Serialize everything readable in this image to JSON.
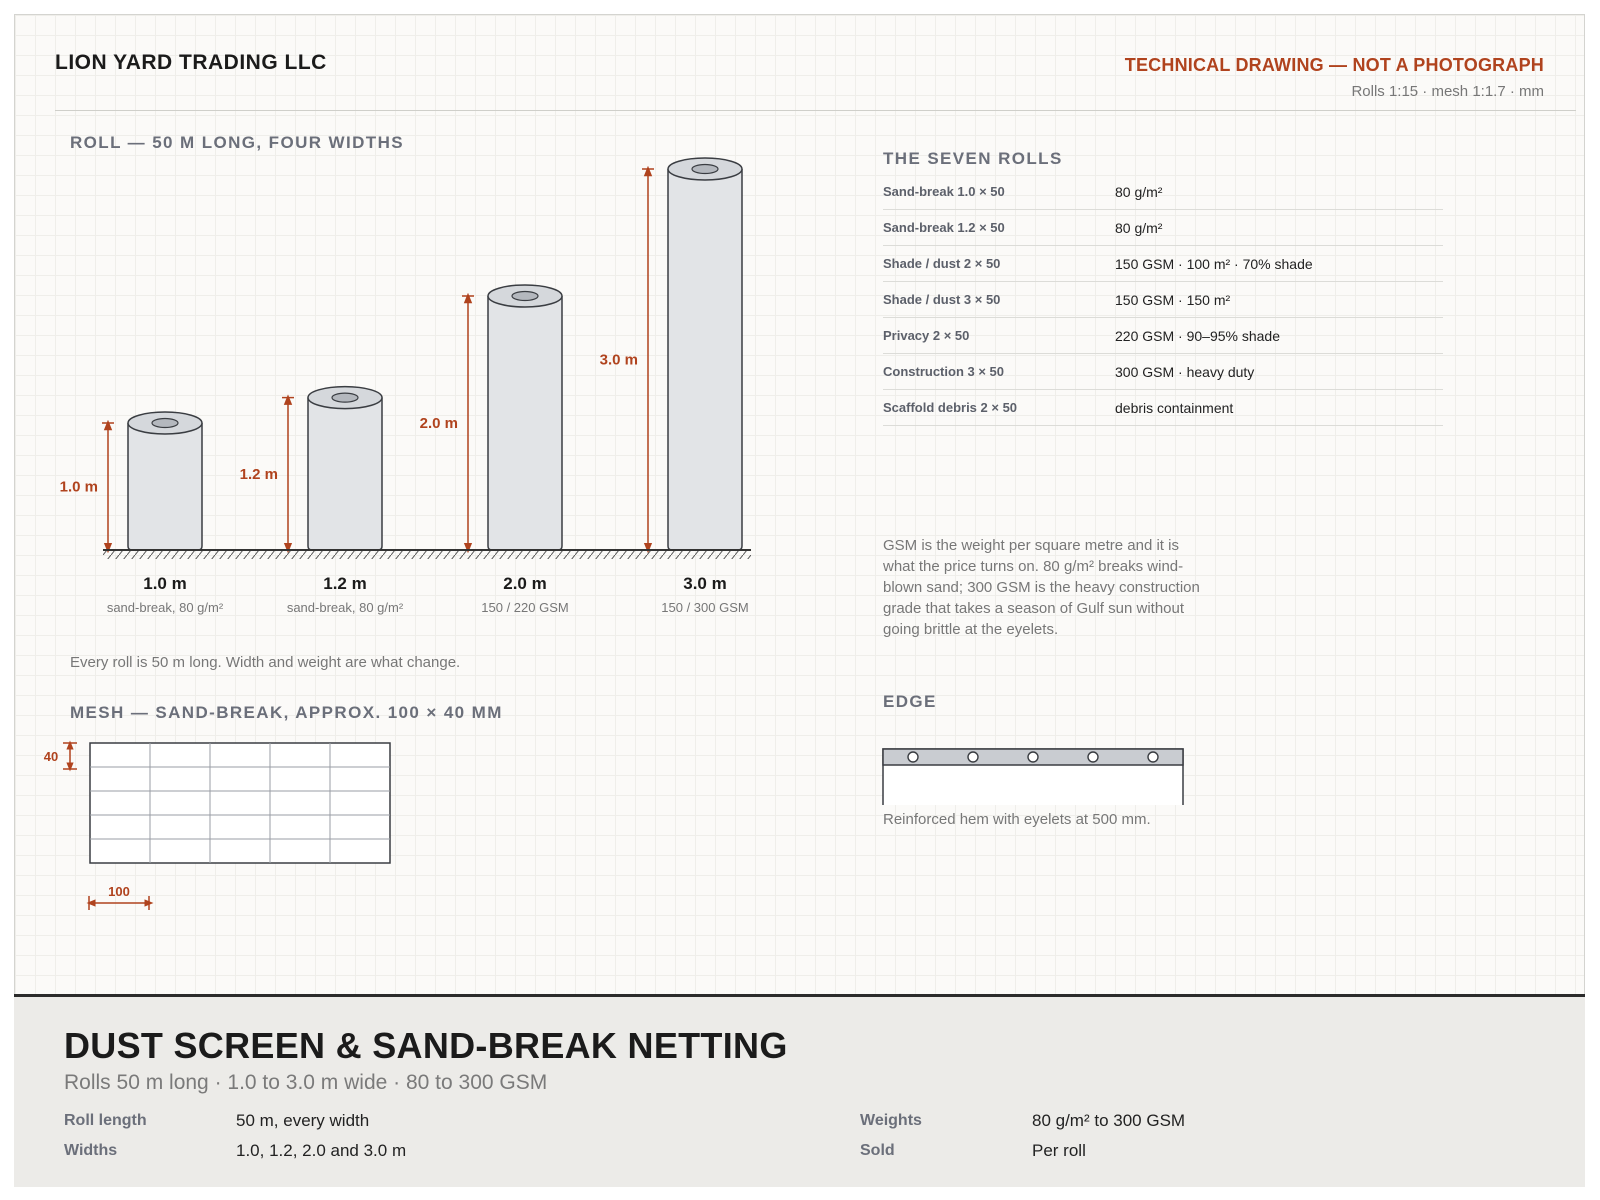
{
  "header": {
    "company": "LION YARD TRADING LLC",
    "technical_note": "TECHNICAL DRAWING — NOT A PHOTOGRAPH",
    "scale_note": "Rolls 1:15 · mesh 1:1.7 · mm"
  },
  "roll_section": {
    "title": "ROLL — 50 M LONG, FOUR WIDTHS",
    "note": "Every roll is 50 m long. Width and weight are what change.",
    "rolls": [
      {
        "width_m": 1.0,
        "dim_label": "1.0 m",
        "name": "1.0 m",
        "spec": "sand-break, 80 g/m²"
      },
      {
        "width_m": 1.2,
        "dim_label": "1.2 m",
        "name": "1.2 m",
        "spec": "sand-break, 80 g/m²"
      },
      {
        "width_m": 2.0,
        "dim_label": "2.0 m",
        "name": "2.0 m",
        "spec": "150 / 220 GSM"
      },
      {
        "width_m": 3.0,
        "dim_label": "3.0 m",
        "name": "3.0 m",
        "spec": "150 / 300 GSM"
      }
    ]
  },
  "seven_rolls": {
    "title": "THE SEVEN ROLLS",
    "rows": [
      {
        "name": "Sand-break 1.0 × 50",
        "spec": "80 g/m²"
      },
      {
        "name": "Sand-break 1.2 × 50",
        "spec": "80 g/m²"
      },
      {
        "name": "Shade / dust 2 × 50",
        "spec": "150 GSM · 100 m² · 70% shade"
      },
      {
        "name": "Shade / dust 3 × 50",
        "spec": "150 GSM · 150 m²"
      },
      {
        "name": "Privacy 2 × 50",
        "spec": "220 GSM · 90–95% shade"
      },
      {
        "name": "Construction 3 × 50",
        "spec": "300 GSM · heavy duty"
      },
      {
        "name": "Scaffold debris 2 × 50",
        "spec": "debris containment"
      }
    ],
    "gsm_note": "GSM is the weight per square metre and it is what the price turns on. 80 g/m² breaks wind-blown sand; 300 GSM is the heavy construction grade that takes a season of Gulf sun without going brittle at the eyelets."
  },
  "mesh_section": {
    "title": "MESH — SAND-BREAK, APPROX. 100 × 40 MM",
    "height_label": "40",
    "width_label": "100",
    "cols": 5,
    "rows": 5
  },
  "edge_section": {
    "title": "EDGE",
    "eyelets": 5,
    "note": "Reinforced hem with eyelets at 500 mm."
  },
  "footer": {
    "title": "DUST SCREEN & SAND-BREAK NETTING",
    "subtitle": "Rolls 50 m long · 1.0 to 3.0 m wide · 80 to 300 GSM",
    "specs": [
      {
        "label": "Roll length",
        "value": "50 m, every width"
      },
      {
        "label": "Widths",
        "value": "1.0, 1.2, 2.0 and 3.0 m"
      },
      {
        "label": "Weights",
        "value": "80 g/m² to 300 GSM"
      },
      {
        "label": "Sold",
        "value": "Per roll"
      }
    ]
  },
  "colors": {
    "accent": "#b0431e",
    "roll_fill": "#e2e4e7",
    "roll_stroke": "#3a3d42",
    "section_title": "#6b6f7a",
    "footer_bg": "#ecebe8"
  }
}
